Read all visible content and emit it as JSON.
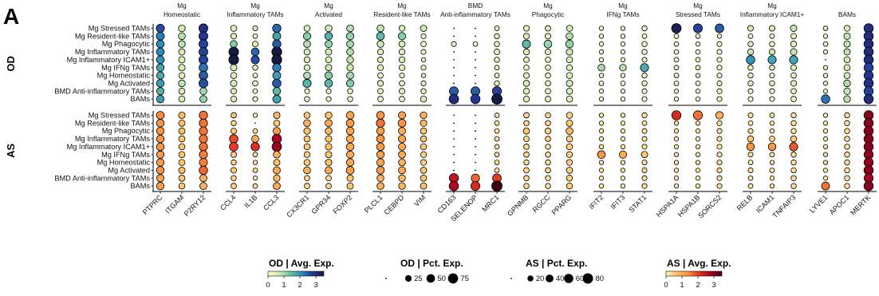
{
  "chart_data": {
    "type": "dotplot",
    "panel_label": "A",
    "groups": [
      "OD",
      "AS"
    ],
    "rows": [
      "Mg Stressed TAMs",
      "Mg Resident-like TAMs",
      "Mg Phagocytic",
      "Mg Inflammatory TAMs",
      "Mg Inflammatory ICAM1+",
      "Mg IFNg TAMs",
      "Mg Homeostatic",
      "Mg Activated",
      "BMD Anti-inflammatory TAMs",
      "BAMs"
    ],
    "modules": [
      {
        "title1": "Mg",
        "title2": "Homeostatic",
        "genes": [
          "PTPRC",
          "ITGAM",
          "P2RY12"
        ]
      },
      {
        "title1": "Mg",
        "title2": "Inflammatory TAMs",
        "genes": [
          "CCL4",
          "IL1B",
          "CCL3"
        ]
      },
      {
        "title1": "Mg",
        "title2": "Activated",
        "genes": [
          "CX3CR1",
          "GPR34",
          "FOXP2"
        ]
      },
      {
        "title1": "Mg",
        "title2": "Resident-like TAMs",
        "genes": [
          "PLCL1",
          "CEBPD",
          "VIM"
        ]
      },
      {
        "title1": "BMD",
        "title2": "Anti-inflammatory TAMs",
        "genes": [
          "CD163",
          "SELENOP",
          "MRC1"
        ]
      },
      {
        "title1": "Mg",
        "title2": "Phagocytic",
        "genes": [
          "GPNMB",
          "RGCC",
          "PPARG"
        ]
      },
      {
        "title1": "Mg",
        "title2": "IFNg TAMs",
        "genes": [
          "IFIT2",
          "IFIT3",
          "STAT1"
        ]
      },
      {
        "title1": "Mg",
        "title2": "Stressed TAMs",
        "genes": [
          "HSPA1A",
          "HSPA1B",
          "SORCS2"
        ]
      },
      {
        "title1": "Mg",
        "title2": "Inflammatory ICAM1+",
        "genes": [
          "RELB",
          "ICAM1",
          "TNFAIP3"
        ]
      },
      {
        "title1": "",
        "title2": "BAMs",
        "genes": [
          "LYVE1",
          "APOC1",
          "MERTK"
        ]
      }
    ],
    "OD_exp": [
      [
        2.6,
        0.7,
        2.9,
        0.6,
        0.5,
        2.4,
        0.6,
        0.7,
        0.9,
        0.8,
        0.6,
        0.7,
        0.2,
        0.2,
        0.3,
        0.5,
        0.5,
        0.6,
        0.2,
        0.2,
        0.3,
        3.3,
        2.7,
        2.5,
        0.6,
        0.6,
        0.8,
        0.5,
        0.6,
        3.0
      ],
      [
        2.2,
        0.9,
        2.8,
        0.5,
        0.3,
        1.8,
        1.2,
        1.6,
        1.1,
        1.5,
        1.2,
        0.3,
        0.2,
        0.2,
        0.4,
        0.6,
        0.5,
        0.9,
        0.2,
        0.2,
        0.2,
        0.3,
        0.3,
        0.2,
        0.2,
        0.2,
        0.4,
        0.3,
        0.8,
        3.0
      ],
      [
        2.1,
        0.8,
        2.7,
        1.2,
        0.6,
        2.5,
        0.9,
        1.1,
        1.0,
        0.7,
        0.6,
        0.4,
        0.4,
        0.3,
        0.4,
        1.5,
        1.1,
        1.1,
        0.2,
        0.2,
        0.4,
        0.3,
        0.2,
        0.3,
        0.4,
        0.4,
        0.5,
        0.4,
        0.8,
        3.0
      ],
      [
        2.1,
        0.6,
        2.7,
        3.8,
        2.4,
        3.8,
        0.6,
        0.7,
        0.9,
        0.5,
        0.5,
        0.3,
        0.2,
        0.2,
        0.5,
        0.5,
        0.5,
        0.7,
        0.2,
        0.2,
        0.4,
        0.3,
        0.3,
        0.3,
        0.7,
        0.7,
        0.8,
        0.3,
        0.8,
        3.0
      ],
      [
        2.0,
        0.6,
        2.7,
        3.6,
        2.6,
        3.8,
        0.5,
        0.6,
        0.8,
        0.4,
        0.5,
        0.2,
        0.2,
        0.2,
        0.4,
        0.4,
        0.4,
        0.6,
        0.2,
        0.2,
        0.3,
        0.3,
        0.3,
        0.3,
        2.0,
        1.8,
        1.8,
        0.2,
        0.7,
        3.0
      ],
      [
        1.8,
        0.7,
        2.3,
        0.7,
        0.4,
        2.2,
        0.5,
        0.7,
        0.7,
        0.5,
        0.5,
        0.3,
        0.2,
        0.2,
        0.3,
        0.4,
        0.4,
        0.5,
        1.0,
        0.9,
        1.7,
        0.3,
        0.3,
        0.3,
        0.4,
        0.4,
        0.5,
        0.3,
        0.7,
        2.7
      ],
      [
        1.7,
        0.6,
        2.5,
        0.6,
        0.3,
        1.9,
        0.9,
        1.2,
        1.0,
        0.4,
        0.3,
        0.2,
        0.2,
        0.2,
        0.3,
        0.5,
        0.4,
        0.6,
        0.2,
        0.2,
        0.4,
        0.3,
        0.2,
        0.3,
        0.4,
        0.3,
        0.4,
        0.3,
        0.7,
        2.8
      ],
      [
        1.9,
        0.8,
        2.6,
        0.7,
        0.5,
        2.5,
        1.6,
        1.5,
        1.2,
        0.5,
        0.4,
        0.3,
        0.2,
        0.2,
        0.4,
        0.6,
        0.4,
        0.7,
        0.3,
        0.3,
        0.4,
        0.3,
        0.3,
        0.3,
        0.4,
        0.4,
        0.5,
        0.3,
        0.9,
        2.9
      ],
      [
        1.6,
        0.6,
        1.0,
        0.5,
        0.3,
        1.5,
        0.3,
        0.3,
        0.4,
        0.4,
        0.5,
        0.4,
        2.5,
        2.5,
        2.7,
        0.5,
        0.4,
        0.6,
        0.2,
        0.2,
        0.3,
        0.2,
        0.2,
        0.3,
        0.3,
        0.3,
        0.4,
        0.3,
        0.8,
        2.7
      ],
      [
        1.9,
        0.6,
        1.1,
        0.6,
        0.4,
        1.8,
        0.4,
        0.3,
        0.4,
        0.4,
        0.4,
        0.6,
        3.0,
        2.8,
        3.8,
        0.5,
        0.5,
        0.6,
        0.2,
        0.2,
        0.3,
        0.2,
        0.2,
        0.3,
        0.3,
        0.3,
        0.4,
        2.3,
        0.9,
        3.0
      ]
    ],
    "OD_pct": [
      [
        45,
        28,
        55,
        22,
        12,
        48,
        22,
        28,
        30,
        30,
        20,
        24,
        5,
        5,
        10,
        18,
        16,
        22,
        8,
        8,
        14,
        65,
        55,
        52,
        18,
        18,
        25,
        10,
        20,
        62
      ],
      [
        42,
        30,
        55,
        18,
        10,
        42,
        35,
        38,
        35,
        40,
        35,
        12,
        5,
        5,
        14,
        20,
        18,
        30,
        8,
        8,
        10,
        10,
        10,
        8,
        10,
        10,
        16,
        8,
        25,
        62
      ],
      [
        40,
        28,
        54,
        30,
        18,
        48,
        30,
        32,
        32,
        28,
        22,
        16,
        12,
        10,
        14,
        45,
        40,
        38,
        8,
        8,
        14,
        10,
        8,
        12,
        14,
        14,
        20,
        10,
        25,
        62
      ],
      [
        40,
        24,
        54,
        68,
        40,
        72,
        22,
        24,
        30,
        20,
        20,
        12,
        5,
        5,
        18,
        20,
        18,
        25,
        8,
        8,
        14,
        10,
        10,
        12,
        20,
        20,
        26,
        8,
        24,
        62
      ],
      [
        40,
        24,
        54,
        70,
        44,
        72,
        20,
        22,
        28,
        18,
        20,
        8,
        5,
        5,
        14,
        16,
        15,
        22,
        8,
        8,
        12,
        10,
        10,
        12,
        50,
        45,
        45,
        6,
        22,
        62
      ],
      [
        38,
        26,
        50,
        25,
        14,
        46,
        20,
        24,
        26,
        20,
        20,
        12,
        5,
        5,
        10,
        15,
        15,
        20,
        30,
        28,
        45,
        10,
        10,
        12,
        14,
        14,
        18,
        8,
        22,
        60
      ],
      [
        36,
        22,
        52,
        22,
        10,
        42,
        30,
        35,
        32,
        16,
        12,
        8,
        5,
        5,
        10,
        18,
        15,
        22,
        8,
        8,
        14,
        10,
        8,
        12,
        14,
        12,
        16,
        8,
        22,
        60
      ],
      [
        38,
        28,
        54,
        25,
        16,
        50,
        45,
        40,
        35,
        20,
        16,
        12,
        6,
        6,
        14,
        22,
        16,
        25,
        10,
        10,
        14,
        10,
        10,
        12,
        14,
        14,
        18,
        8,
        28,
        62
      ],
      [
        34,
        22,
        30,
        18,
        10,
        38,
        12,
        12,
        14,
        16,
        18,
        14,
        55,
        55,
        58,
        20,
        16,
        22,
        8,
        8,
        12,
        8,
        8,
        12,
        12,
        12,
        16,
        8,
        26,
        60
      ],
      [
        38,
        22,
        32,
        20,
        12,
        42,
        14,
        12,
        14,
        16,
        16,
        22,
        65,
        62,
        80,
        20,
        18,
        22,
        8,
        8,
        12,
        8,
        8,
        12,
        12,
        12,
        16,
        50,
        28,
        62
      ]
    ],
    "AS_exp": [
      [
        1.4,
        0.8,
        1.6,
        0.6,
        0.2,
        0.8,
        0.6,
        0.7,
        1.1,
        1.3,
        1.1,
        0.9,
        0.2,
        0.2,
        0.3,
        0.4,
        0.4,
        0.5,
        0.2,
        0.2,
        0.3,
        2.2,
        1.6,
        0.9,
        0.3,
        0.2,
        0.3,
        0.2,
        0.3,
        3.0
      ],
      [
        1.3,
        0.7,
        1.6,
        0.4,
        0.2,
        0.6,
        0.9,
        1.0,
        1.2,
        1.6,
        1.3,
        0.8,
        0.2,
        0.2,
        0.3,
        0.4,
        0.4,
        0.6,
        0.2,
        0.2,
        0.2,
        0.3,
        0.2,
        0.3,
        0.2,
        0.2,
        0.3,
        0.2,
        0.3,
        3.0
      ],
      [
        1.3,
        0.7,
        1.6,
        0.6,
        0.3,
        1.2,
        0.7,
        0.8,
        1.1,
        1.2,
        1.0,
        0.6,
        0.2,
        0.2,
        0.3,
        0.6,
        0.5,
        0.8,
        0.2,
        0.2,
        0.3,
        0.2,
        0.2,
        0.3,
        0.3,
        0.2,
        0.3,
        0.2,
        0.3,
        3.0
      ],
      [
        1.3,
        0.6,
        1.6,
        1.9,
        1.0,
        2.7,
        0.6,
        0.7,
        1.0,
        1.3,
        1.1,
        0.6,
        0.2,
        0.2,
        0.3,
        0.4,
        0.4,
        0.5,
        0.2,
        0.2,
        0.3,
        0.2,
        0.2,
        0.3,
        0.6,
        0.4,
        0.6,
        0.2,
        0.3,
        3.0
      ],
      [
        1.3,
        0.6,
        1.6,
        2.0,
        2.1,
        2.9,
        0.6,
        0.7,
        1.0,
        1.2,
        1.0,
        0.6,
        0.2,
        0.2,
        0.3,
        0.4,
        0.3,
        0.5,
        0.2,
        0.2,
        0.3,
        0.2,
        0.2,
        0.3,
        1.3,
        1.3,
        1.8,
        0.2,
        0.3,
        3.0
      ],
      [
        1.2,
        0.6,
        1.5,
        0.5,
        0.3,
        0.9,
        0.5,
        0.6,
        1.0,
        1.1,
        1.0,
        0.5,
        0.2,
        0.2,
        0.3,
        0.4,
        0.3,
        0.5,
        1.3,
        1.0,
        0.6,
        0.2,
        0.2,
        0.3,
        0.3,
        0.2,
        0.3,
        0.2,
        0.3,
        2.9
      ],
      [
        1.2,
        0.6,
        1.5,
        0.4,
        0.2,
        0.7,
        0.6,
        0.7,
        1.0,
        1.1,
        0.9,
        0.5,
        0.2,
        0.2,
        0.3,
        0.3,
        0.3,
        0.5,
        0.2,
        0.2,
        0.3,
        0.2,
        0.2,
        0.3,
        0.2,
        0.2,
        0.3,
        0.2,
        0.3,
        2.9
      ],
      [
        1.3,
        0.7,
        1.7,
        0.6,
        0.3,
        1.0,
        0.9,
        1.0,
        1.2,
        1.2,
        1.0,
        0.6,
        0.2,
        0.2,
        0.3,
        0.4,
        0.4,
        0.5,
        0.2,
        0.2,
        0.3,
        0.2,
        0.2,
        0.3,
        0.3,
        0.2,
        0.3,
        0.2,
        0.3,
        3.0
      ],
      [
        1.1,
        0.6,
        0.9,
        0.4,
        0.2,
        0.8,
        0.4,
        0.4,
        0.6,
        0.9,
        0.8,
        0.6,
        2.5,
        1.7,
        2.0,
        0.4,
        0.3,
        0.5,
        0.2,
        0.2,
        0.3,
        0.2,
        0.2,
        0.3,
        0.2,
        0.2,
        0.3,
        0.2,
        0.3,
        2.8
      ],
      [
        1.2,
        0.6,
        0.9,
        0.5,
        0.3,
        1.0,
        0.4,
        0.4,
        0.6,
        0.9,
        0.8,
        0.7,
        2.7,
        2.2,
        3.6,
        0.4,
        0.3,
        0.5,
        0.2,
        0.2,
        0.3,
        0.2,
        0.2,
        0.3,
        0.2,
        0.2,
        0.3,
        1.6,
        0.3,
        3.0
      ]
    ],
    "AS_pct": [
      [
        40,
        26,
        46,
        16,
        8,
        26,
        22,
        28,
        38,
        40,
        34,
        28,
        5,
        5,
        10,
        16,
        15,
        22,
        8,
        8,
        14,
        60,
        58,
        36,
        12,
        10,
        14,
        8,
        14,
        62
      ],
      [
        38,
        24,
        46,
        14,
        6,
        22,
        30,
        32,
        40,
        46,
        40,
        26,
        5,
        5,
        10,
        15,
        15,
        24,
        8,
        8,
        10,
        8,
        8,
        12,
        10,
        8,
        14,
        8,
        14,
        62
      ],
      [
        38,
        24,
        46,
        18,
        10,
        34,
        26,
        28,
        38,
        38,
        32,
        22,
        5,
        5,
        10,
        22,
        20,
        30,
        8,
        8,
        12,
        8,
        8,
        12,
        12,
        8,
        14,
        8,
        14,
        62
      ],
      [
        38,
        22,
        46,
        50,
        32,
        62,
        22,
        26,
        36,
        40,
        34,
        22,
        5,
        5,
        10,
        16,
        15,
        22,
        8,
        8,
        12,
        8,
        8,
        12,
        22,
        16,
        22,
        8,
        14,
        62
      ],
      [
        38,
        22,
        46,
        52,
        48,
        65,
        22,
        26,
        36,
        38,
        32,
        22,
        5,
        5,
        10,
        16,
        14,
        22,
        8,
        8,
        12,
        8,
        8,
        12,
        38,
        38,
        46,
        8,
        14,
        62
      ],
      [
        36,
        22,
        44,
        18,
        10,
        30,
        20,
        24,
        34,
        36,
        32,
        20,
        5,
        5,
        10,
        16,
        14,
        20,
        40,
        34,
        24,
        8,
        8,
        12,
        12,
        10,
        14,
        8,
        14,
        60
      ],
      [
        36,
        22,
        44,
        14,
        8,
        24,
        22,
        26,
        36,
        36,
        30,
        20,
        5,
        5,
        10,
        14,
        14,
        20,
        8,
        8,
        12,
        8,
        8,
        12,
        10,
        8,
        14,
        8,
        14,
        60
      ],
      [
        38,
        24,
        48,
        18,
        10,
        32,
        30,
        32,
        40,
        38,
        32,
        22,
        5,
        5,
        10,
        16,
        15,
        22,
        8,
        8,
        12,
        8,
        8,
        12,
        12,
        10,
        14,
        8,
        14,
        62
      ],
      [
        34,
        22,
        32,
        14,
        8,
        26,
        16,
        16,
        24,
        30,
        28,
        22,
        60,
        46,
        52,
        15,
        14,
        20,
        8,
        8,
        12,
        8,
        8,
        12,
        10,
        8,
        14,
        8,
        14,
        58
      ],
      [
        36,
        22,
        32,
        16,
        10,
        32,
        16,
        16,
        24,
        30,
        28,
        24,
        62,
        56,
        80,
        15,
        14,
        20,
        8,
        8,
        12,
        8,
        8,
        12,
        10,
        8,
        14,
        42,
        14,
        62
      ]
    ],
    "legends": {
      "od_exp": {
        "title": "OD | Avg. Exp.",
        "ticks": [
          0,
          1,
          2,
          3
        ],
        "range": [
          0,
          3.5
        ],
        "colors": [
          "#fdf8ce",
          "#d0ebb0",
          "#66c2a4",
          "#2b8cbe",
          "#253494",
          "#141b40"
        ]
      },
      "od_pct": {
        "title": "OD | Pct. Exp.",
        "values": [
          0,
          25,
          50,
          75
        ]
      },
      "as_pct": {
        "title": "AS | Pct. Exp.",
        "values": [
          0,
          20,
          40,
          60,
          80
        ]
      },
      "as_exp": {
        "title": "AS | Avg. Exp.",
        "ticks": [
          0,
          1,
          2,
          3
        ],
        "range": [
          0,
          3.5
        ],
        "colors": [
          "#fff5bd",
          "#fec062",
          "#fd8d3c",
          "#e0301e",
          "#a50026",
          "#3d0010"
        ]
      }
    }
  }
}
